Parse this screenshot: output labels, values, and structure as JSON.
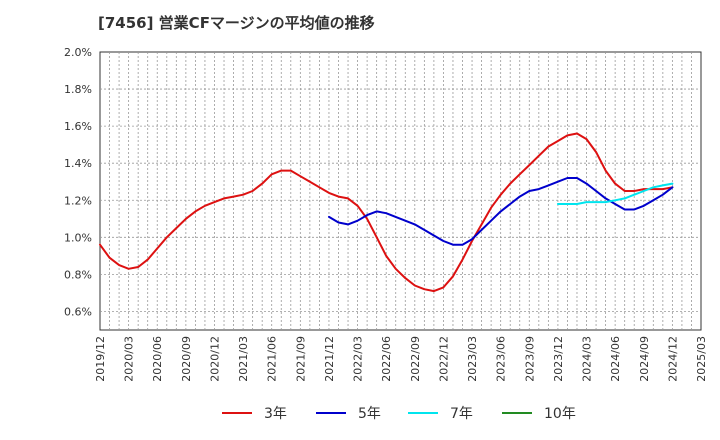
{
  "title": "[7456]  営業CFマージンの平均値の推移",
  "colors": {
    "background": "#ffffff",
    "grid": "#999999",
    "axis": "#333333"
  },
  "chart_data": {
    "type": "line",
    "title": "[7456]  営業CFマージンの平均値の推移",
    "xlabel": "",
    "ylabel": "",
    "x_range": [
      "2019-12",
      "2025-03"
    ],
    "ylim": [
      0.5,
      2.0
    ],
    "y_unit": "%",
    "y_ticks": [
      0.6,
      0.8,
      1.0,
      1.2,
      1.4,
      1.6,
      1.8,
      2.0
    ],
    "y_tick_labels": [
      "0.6%",
      "0.8%",
      "1.0%",
      "1.2%",
      "1.4%",
      "1.6%",
      "1.8%",
      "2.0%"
    ],
    "x_tick_labels": [
      "2019/12",
      "2020/03",
      "2020/06",
      "2020/09",
      "2020/12",
      "2021/03",
      "2021/06",
      "2021/09",
      "2021/12",
      "2022/03",
      "2022/06",
      "2022/09",
      "2022/12",
      "2023/03",
      "2023/06",
      "2023/09",
      "2023/12",
      "2024/03",
      "2024/06",
      "2024/09",
      "2024/12",
      "2025/03"
    ],
    "grid": true,
    "legend_position": "bottom",
    "series": [
      {
        "name": "3年",
        "color": "#dd1111",
        "x": [
          "2019-12",
          "2020-01",
          "2020-02",
          "2020-03",
          "2020-04",
          "2020-05",
          "2020-06",
          "2020-07",
          "2020-08",
          "2020-09",
          "2020-10",
          "2020-11",
          "2020-12",
          "2021-01",
          "2021-02",
          "2021-03",
          "2021-04",
          "2021-05",
          "2021-06",
          "2021-07",
          "2021-08",
          "2021-09",
          "2021-10",
          "2021-11",
          "2021-12",
          "2022-01",
          "2022-02",
          "2022-03",
          "2022-04",
          "2022-05",
          "2022-06",
          "2022-07",
          "2022-08",
          "2022-09",
          "2022-10",
          "2022-11",
          "2022-12",
          "2023-01",
          "2023-02",
          "2023-03",
          "2023-04",
          "2023-05",
          "2023-06",
          "2023-07",
          "2023-08",
          "2023-09",
          "2023-10",
          "2023-11",
          "2023-12",
          "2024-01",
          "2024-02",
          "2024-03",
          "2024-04",
          "2024-05",
          "2024-06",
          "2024-07",
          "2024-08",
          "2024-09",
          "2024-10",
          "2024-11",
          "2024-12"
        ],
        "values": [
          0.96,
          0.89,
          0.85,
          0.83,
          0.84,
          0.88,
          0.94,
          1.0,
          1.05,
          1.1,
          1.14,
          1.17,
          1.19,
          1.21,
          1.22,
          1.23,
          1.25,
          1.29,
          1.34,
          1.36,
          1.36,
          1.33,
          1.3,
          1.27,
          1.24,
          1.22,
          1.21,
          1.17,
          1.1,
          1.0,
          0.9,
          0.83,
          0.78,
          0.74,
          0.72,
          0.71,
          0.73,
          0.79,
          0.88,
          0.98,
          1.07,
          1.16,
          1.23,
          1.29,
          1.34,
          1.39,
          1.44,
          1.49,
          1.52,
          1.55,
          1.56,
          1.53,
          1.46,
          1.36,
          1.29,
          1.25,
          1.25,
          1.26,
          1.26,
          1.26,
          1.27
        ]
      },
      {
        "name": "5年",
        "color": "#0000cc",
        "x": [
          "2021-12",
          "2022-01",
          "2022-02",
          "2022-03",
          "2022-04",
          "2022-05",
          "2022-06",
          "2022-07",
          "2022-08",
          "2022-09",
          "2022-10",
          "2022-11",
          "2022-12",
          "2023-01",
          "2023-02",
          "2023-03",
          "2023-04",
          "2023-05",
          "2023-06",
          "2023-07",
          "2023-08",
          "2023-09",
          "2023-10",
          "2023-11",
          "2023-12",
          "2024-01",
          "2024-02",
          "2024-03",
          "2024-04",
          "2024-05",
          "2024-06",
          "2024-07",
          "2024-08",
          "2024-09",
          "2024-10",
          "2024-11",
          "2024-12"
        ],
        "values": [
          1.11,
          1.08,
          1.07,
          1.09,
          1.12,
          1.14,
          1.13,
          1.11,
          1.09,
          1.07,
          1.04,
          1.01,
          0.98,
          0.96,
          0.96,
          0.99,
          1.04,
          1.09,
          1.14,
          1.18,
          1.22,
          1.25,
          1.26,
          1.28,
          1.3,
          1.32,
          1.32,
          1.29,
          1.25,
          1.21,
          1.18,
          1.15,
          1.15,
          1.17,
          1.2,
          1.23,
          1.27
        ]
      },
      {
        "name": "7年",
        "color": "#00e5ee",
        "x": [
          "2023-12",
          "2024-01",
          "2024-02",
          "2024-03",
          "2024-04",
          "2024-05",
          "2024-06",
          "2024-07",
          "2024-08",
          "2024-09",
          "2024-10",
          "2024-11",
          "2024-12"
        ],
        "values": [
          1.18,
          1.18,
          1.18,
          1.19,
          1.19,
          1.19,
          1.2,
          1.21,
          1.23,
          1.25,
          1.27,
          1.28,
          1.29
        ]
      },
      {
        "name": "10年",
        "color": "#228b22",
        "x": [],
        "values": []
      }
    ]
  }
}
